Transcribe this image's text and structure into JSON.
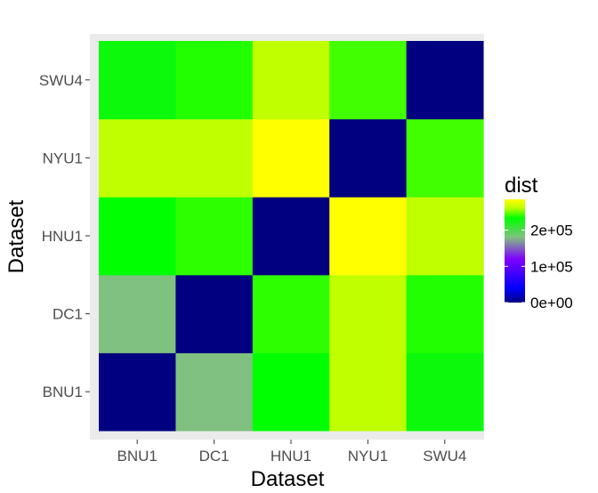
{
  "chart_data": {
    "type": "heatmap",
    "xlabel": "Dataset",
    "ylabel": "Dataset",
    "x_categories": [
      "BNU1",
      "DC1",
      "HNU1",
      "NYU1",
      "SWU4"
    ],
    "y_categories": [
      "BNU1",
      "DC1",
      "HNU1",
      "NYU1",
      "SWU4"
    ],
    "cells": [
      {
        "x": "BNU1",
        "y": "BNU1",
        "value": 0
      },
      {
        "x": "DC1",
        "y": "BNU1",
        "value": 180000
      },
      {
        "x": "HNU1",
        "y": "BNU1",
        "value": 233000
      },
      {
        "x": "NYU1",
        "y": "BNU1",
        "value": 262000
      },
      {
        "x": "SWU4",
        "y": "BNU1",
        "value": 228000
      },
      {
        "x": "BNU1",
        "y": "DC1",
        "value": 180000
      },
      {
        "x": "DC1",
        "y": "DC1",
        "value": 0
      },
      {
        "x": "HNU1",
        "y": "DC1",
        "value": 240000
      },
      {
        "x": "NYU1",
        "y": "DC1",
        "value": 262000
      },
      {
        "x": "SWU4",
        "y": "DC1",
        "value": 238000
      },
      {
        "x": "BNU1",
        "y": "HNU1",
        "value": 233000
      },
      {
        "x": "DC1",
        "y": "HNU1",
        "value": 240000
      },
      {
        "x": "HNU1",
        "y": "HNU1",
        "value": 0
      },
      {
        "x": "NYU1",
        "y": "HNU1",
        "value": 285000
      },
      {
        "x": "SWU4",
        "y": "HNU1",
        "value": 262000
      },
      {
        "x": "BNU1",
        "y": "NYU1",
        "value": 262000
      },
      {
        "x": "DC1",
        "y": "NYU1",
        "value": 262000
      },
      {
        "x": "HNU1",
        "y": "NYU1",
        "value": 285000
      },
      {
        "x": "NYU1",
        "y": "NYU1",
        "value": 0
      },
      {
        "x": "SWU4",
        "y": "NYU1",
        "value": 243000
      },
      {
        "x": "BNU1",
        "y": "SWU4",
        "value": 228000
      },
      {
        "x": "DC1",
        "y": "SWU4",
        "value": 238000
      },
      {
        "x": "HNU1",
        "y": "SWU4",
        "value": 262000
      },
      {
        "x": "NYU1",
        "y": "SWU4",
        "value": 243000
      },
      {
        "x": "SWU4",
        "y": "SWU4",
        "value": 0
      }
    ],
    "value_range": [
      0,
      285000
    ],
    "color_stops": [
      {
        "value": 0,
        "color": "#000080"
      },
      {
        "value": 40000,
        "color": "#0000FF"
      },
      {
        "value": 120000,
        "color": "#8000FF"
      },
      {
        "value": 180000,
        "color": "#80C080"
      },
      {
        "value": 233000,
        "color": "#00FF00"
      },
      {
        "value": 262000,
        "color": "#BFFF00"
      },
      {
        "value": 285000,
        "color": "#FFFF00"
      }
    ],
    "legend": {
      "title": "dist",
      "position": "right",
      "ticks": [
        {
          "value": 0,
          "label": "0e+00"
        },
        {
          "value": 100000,
          "label": "1e+05"
        },
        {
          "value": 200000,
          "label": "2e+05"
        }
      ]
    },
    "panel_background": "#EBEBEB",
    "grid": false
  }
}
